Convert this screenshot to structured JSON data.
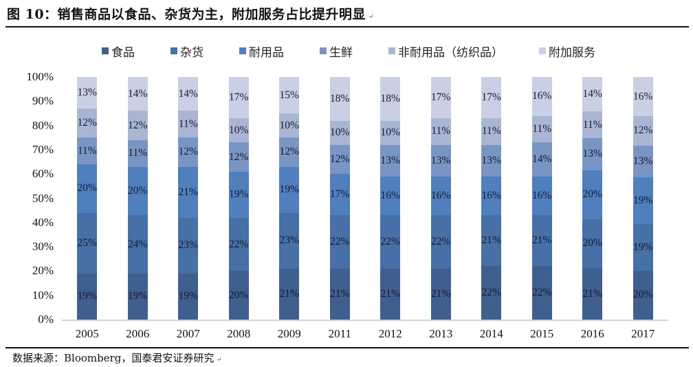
{
  "figure": {
    "title": "图 10：销售商品以食品、杂货为主，附加服务占比提升明显",
    "title_mark": "↵",
    "source": "数据来源：Bloomberg，国泰君安证券研究",
    "source_mark": "↵"
  },
  "chart_data": {
    "type": "bar",
    "stacked": true,
    "percent_stacked": true,
    "title": "销售商品以食品、杂货为主，附加服务占比提升明显",
    "xlabel": "",
    "ylabel": "",
    "ylim": [
      0,
      100
    ],
    "y_ticks": [
      "0%",
      "10%",
      "20%",
      "30%",
      "40%",
      "50%",
      "60%",
      "70%",
      "80%",
      "90%",
      "100%"
    ],
    "grid": false,
    "legend_position": "top",
    "categories": [
      "2005",
      "2006",
      "2007",
      "2008",
      "2009",
      "2011",
      "2012",
      "2013",
      "2014",
      "2015",
      "2016",
      "2017"
    ],
    "series": [
      {
        "name": "食品",
        "color": "#3f5f8e",
        "values": [
          19,
          19,
          19,
          20,
          21,
          21,
          21,
          21,
          22,
          22,
          21,
          20
        ]
      },
      {
        "name": "杂货",
        "color": "#4670a6",
        "values": [
          25,
          24,
          23,
          22,
          23,
          22,
          22,
          22,
          21,
          21,
          20,
          19
        ]
      },
      {
        "name": "耐用品",
        "color": "#4f7fbd",
        "values": [
          20,
          20,
          21,
          19,
          19,
          17,
          16,
          16,
          16,
          16,
          20,
          19
        ]
      },
      {
        "name": "生鲜",
        "color": "#7995c3",
        "values": [
          11,
          11,
          12,
          12,
          12,
          12,
          13,
          13,
          13,
          14,
          13,
          13
        ]
      },
      {
        "name": "非耐用品（纺织品）",
        "color": "#a9b6d3",
        "values": [
          12,
          12,
          11,
          10,
          10,
          10,
          10,
          11,
          11,
          11,
          11,
          12
        ]
      },
      {
        "name": "附加服务",
        "color": "#c9d0e3",
        "values": [
          13,
          14,
          14,
          17,
          15,
          18,
          18,
          17,
          17,
          16,
          14,
          16
        ]
      }
    ],
    "value_suffix": "%"
  }
}
